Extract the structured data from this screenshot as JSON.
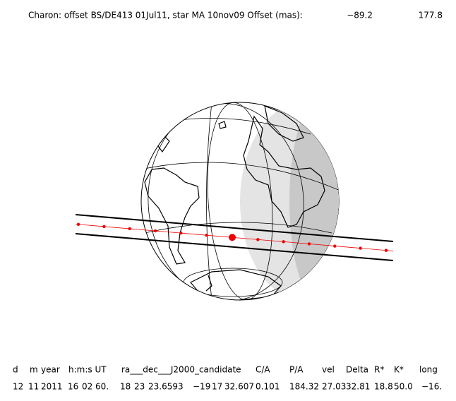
{
  "header": {
    "title": "Charon: offset BS/DE413 01Jul11, star MA 10nov09  Offset (mas):",
    "offset_x": "−89.2",
    "offset_y": "177.8"
  },
  "table": {
    "columns": [
      "d",
      "m",
      "year",
      "h:m:s UT",
      "ra___dec___J2000_candidate",
      "C/A",
      "P/A",
      "vel",
      "Delta",
      "R*",
      "K*",
      "long"
    ],
    "row": [
      "12",
      "11",
      "2011",
      "16",
      "02",
      "60.",
      "18",
      "23",
      "23.6593",
      "−19",
      "17",
      "32.607",
      "0.101",
      "184.32",
      "27.03",
      "32.81",
      "18.8",
      "50.0",
      "−16."
    ]
  }
}
